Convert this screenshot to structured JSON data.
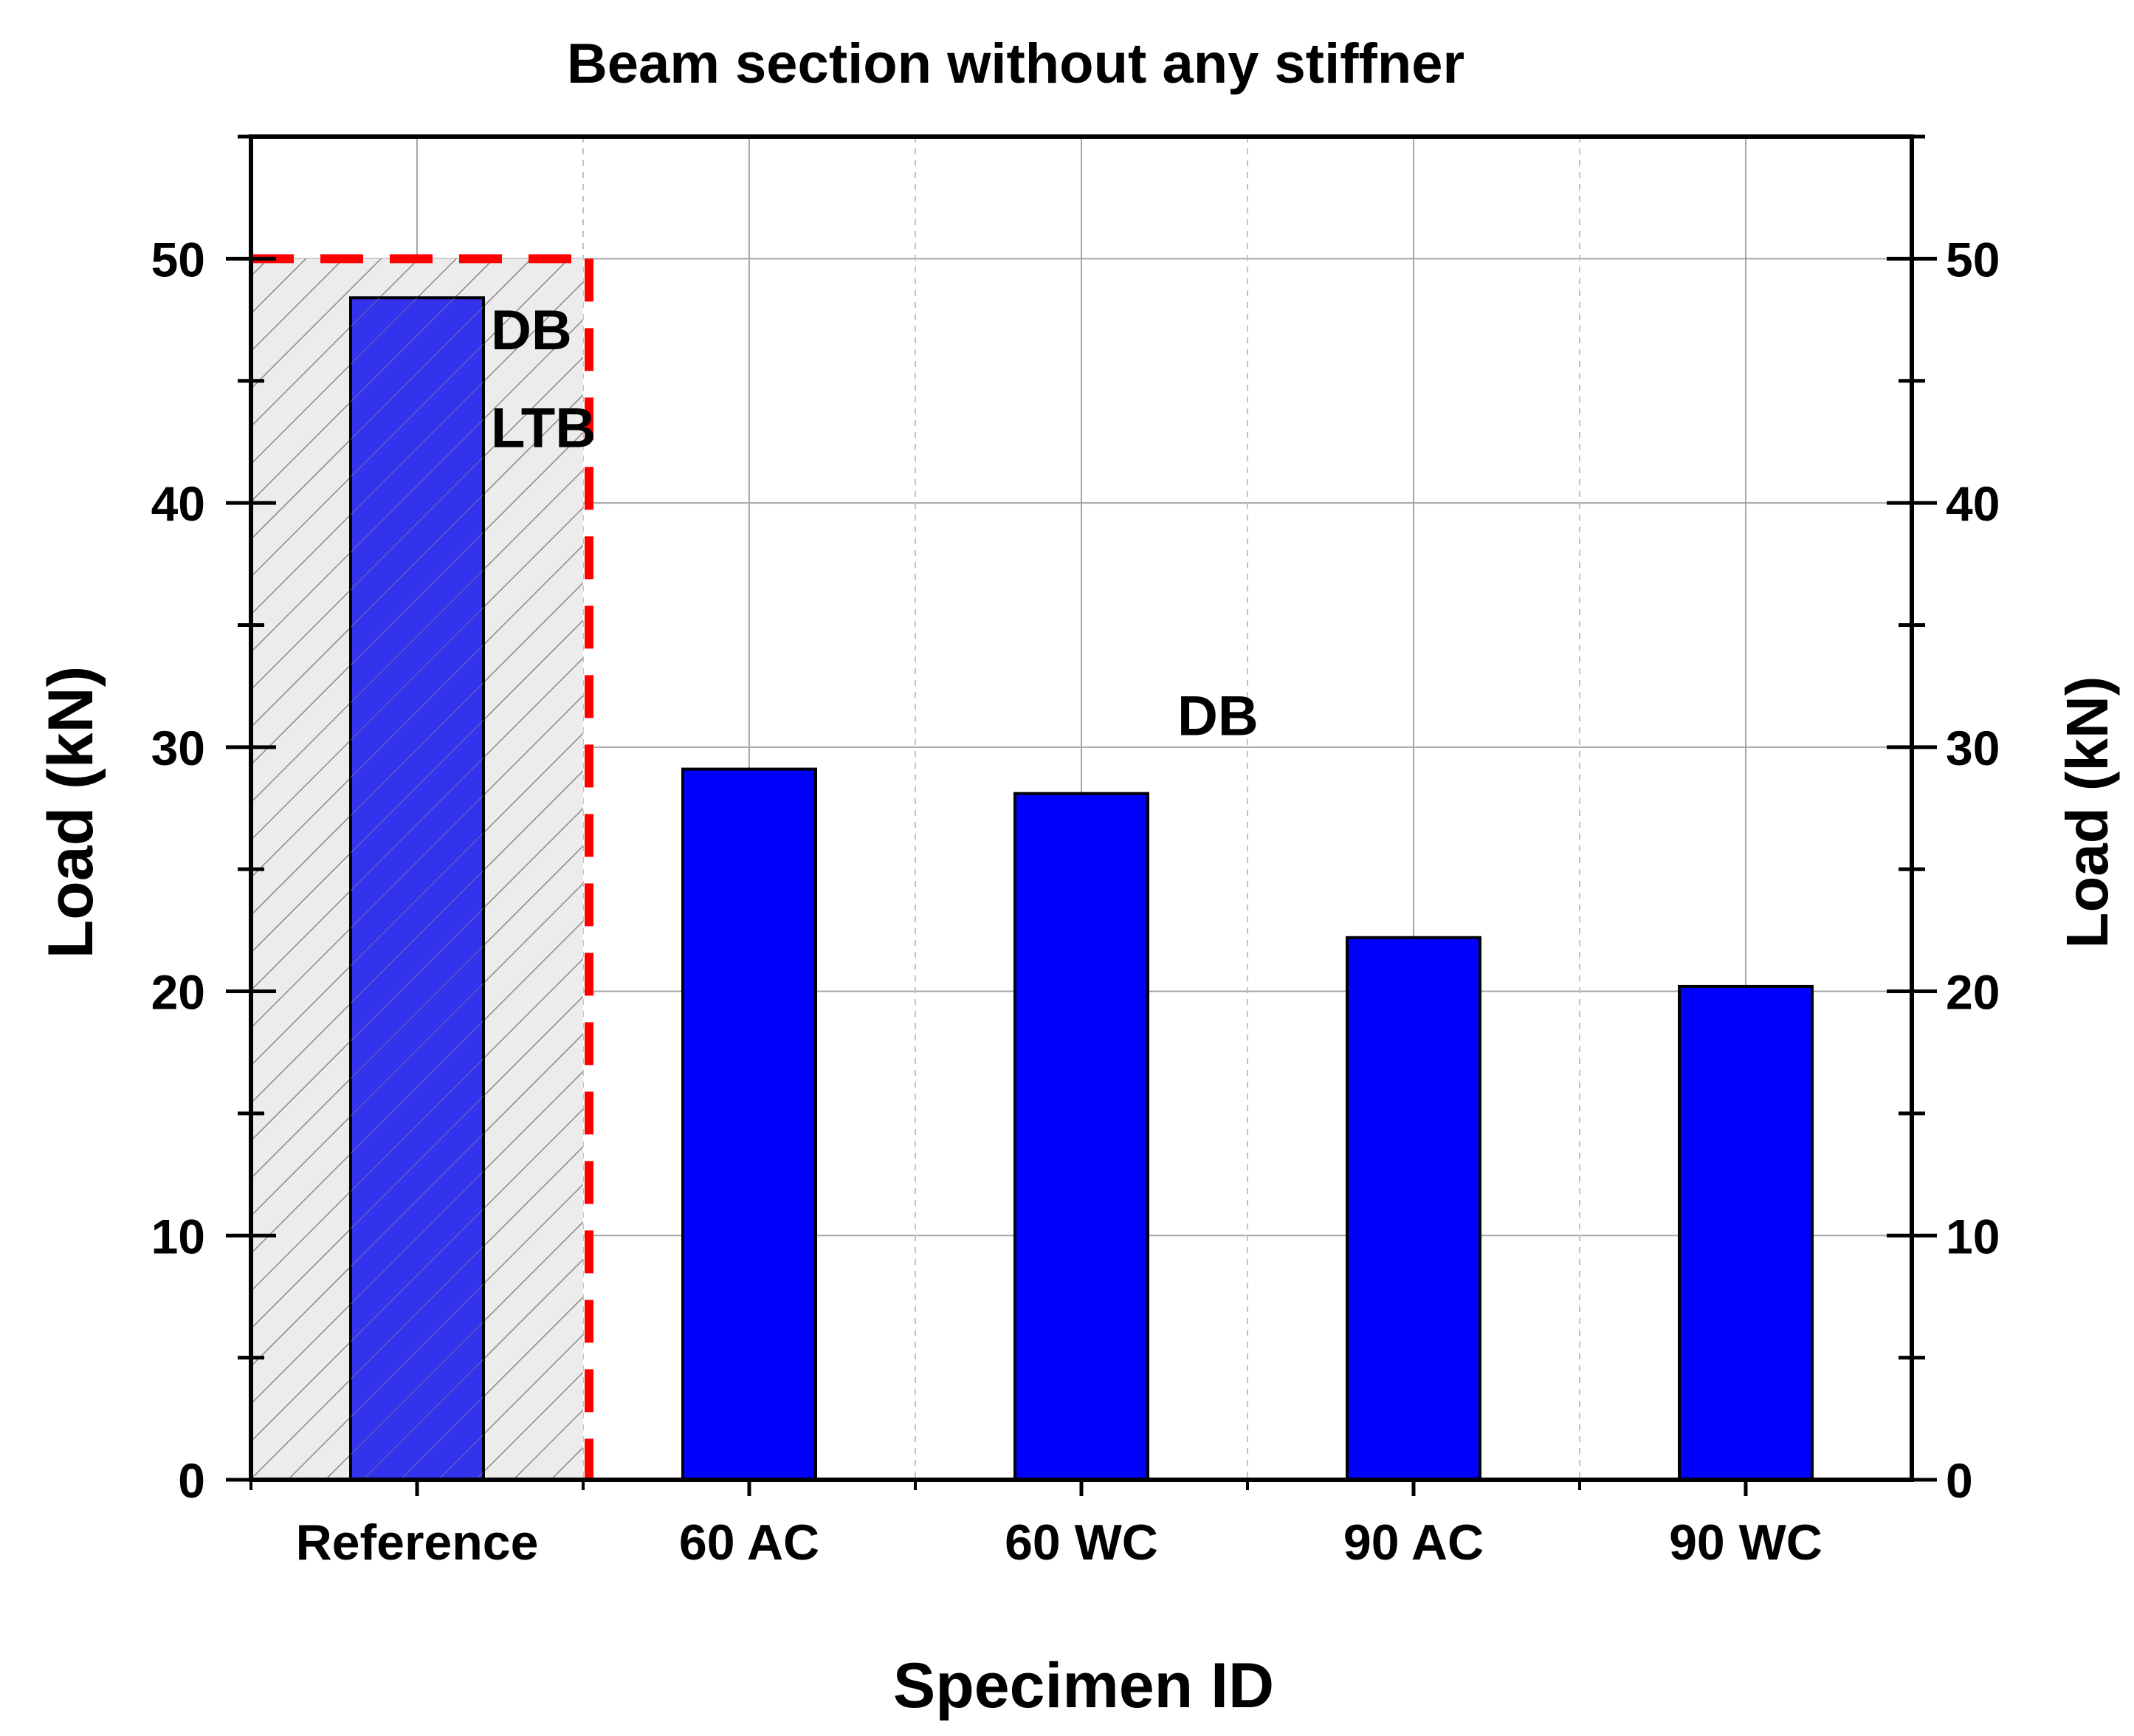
{
  "chart_data": {
    "type": "bar",
    "title": "Beam section without any stiffner",
    "xlabel": "Specimen ID",
    "ylabel": "Load (kN)",
    "ylabel_right": "Load (kN)",
    "categories": [
      "Reference",
      "60 AC",
      "60 WC",
      "90 AC",
      "90 WC"
    ],
    "values": [
      48.4,
      29.1,
      28.1,
      22.2,
      20.2
    ],
    "ylim": [
      0,
      55
    ],
    "yticks": [
      0,
      10,
      20,
      30,
      40,
      50
    ],
    "grid": true,
    "bar_color": "#0000FF",
    "reference_bar_color": "#3333EE",
    "highlight_region": {
      "category": "Reference",
      "y_top": 50,
      "fill": "#ECECEC",
      "hatch": "#888888",
      "border_color": "#FF0000",
      "border_style": "dashed"
    },
    "annotations": [
      {
        "text": "DB",
        "category": "Reference",
        "y": 47.2
      },
      {
        "text": "LTB",
        "category": "Reference",
        "y": 43.2
      },
      {
        "text": "DB",
        "category_between": [
          "60 WC",
          "90 AC"
        ],
        "y": 31.4
      }
    ]
  }
}
